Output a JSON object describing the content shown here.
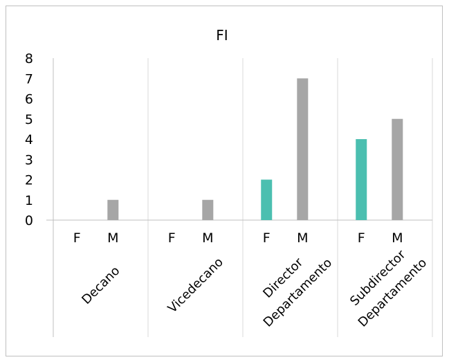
{
  "chart_data": {
    "type": "bar",
    "title": "FI",
    "ylim": [
      0,
      8
    ],
    "yticks": [
      0,
      1,
      2,
      3,
      4,
      5,
      6,
      7,
      8
    ],
    "groups": [
      {
        "label_lines": [
          "Decano"
        ],
        "categories": [
          "F",
          "M"
        ],
        "values": [
          0,
          1
        ]
      },
      {
        "label_lines": [
          "Vicedecano"
        ],
        "categories": [
          "F",
          "M"
        ],
        "values": [
          0,
          1
        ]
      },
      {
        "label_lines": [
          "Director",
          "Departamento"
        ],
        "categories": [
          "F",
          "M"
        ],
        "values": [
          2,
          7
        ]
      },
      {
        "label_lines": [
          "Subdirector",
          "Departamento"
        ],
        "categories": [
          "F",
          "M"
        ],
        "values": [
          4,
          5
        ]
      }
    ],
    "colors": {
      "F": "#4bbfb0",
      "M": "#a6a6a6",
      "grid": "#d9d9d9",
      "axis": "#bfbfbf"
    },
    "grid": "vertical group separators",
    "legend": "none"
  }
}
